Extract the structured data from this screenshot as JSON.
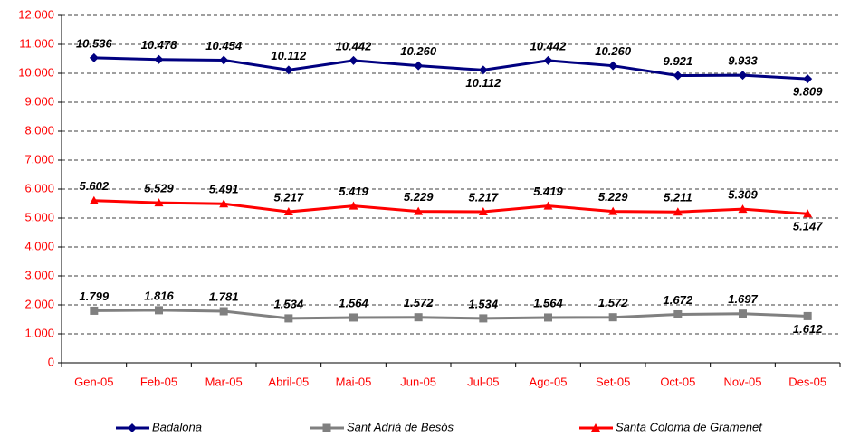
{
  "chart_data": {
    "type": "line",
    "categories": [
      "Gen-05",
      "Feb-05",
      "Mar-05",
      "Abril-05",
      "Mai-05",
      "Jun-05",
      "Jul-05",
      "Ago-05",
      "Set-05",
      "Oct-05",
      "Nov-05",
      "Des-05"
    ],
    "series": [
      {
        "name": "Badalona",
        "color": "#000080",
        "marker": "diamond",
        "values": [
          10536,
          10478,
          10454,
          10112,
          10442,
          10260,
          10112,
          10442,
          10260,
          9921,
          9933,
          9809
        ],
        "value_labels": [
          "10.536",
          "10.478",
          "10.454",
          "10.112",
          "10.442",
          "10.260",
          "10.112",
          "10.442",
          "10.260",
          "9.921",
          "9.933",
          "9.809"
        ]
      },
      {
        "name": "Sant Adrià de Besòs",
        "color": "#808080",
        "marker": "square",
        "values": [
          1799,
          1816,
          1781,
          1534,
          1564,
          1572,
          1534,
          1564,
          1572,
          1672,
          1697,
          1612
        ],
        "value_labels": [
          "1.799",
          "1.816",
          "1.781",
          "1.534",
          "1.564",
          "1.572",
          "1.534",
          "1.564",
          "1.572",
          "1.672",
          "1.697",
          "1.612"
        ]
      },
      {
        "name": "Santa Coloma de Gramenet",
        "color": "#ff0000",
        "marker": "triangle",
        "values": [
          5602,
          5529,
          5491,
          5217,
          5419,
          5229,
          5217,
          5419,
          5229,
          5211,
          5309,
          5147
        ],
        "value_labels": [
          "5.602",
          "5.529",
          "5.491",
          "5.217",
          "5.419",
          "5.229",
          "5.217",
          "5.419",
          "5.229",
          "5.211",
          "5.309",
          "5.147"
        ]
      }
    ],
    "ylim": [
      0,
      12000
    ],
    "yticks": [
      0,
      {
        "value": 1000,
        "label": "1.000"
      },
      {
        "value": 2000,
        "label": "2.000"
      },
      {
        "value": 3000,
        "label": "3.000"
      },
      {
        "value": 4000,
        "label": "4.000"
      },
      {
        "value": 5000,
        "label": "5.000"
      },
      {
        "value": 6000,
        "label": "6.000"
      },
      {
        "value": 7000,
        "label": "7.000"
      },
      {
        "value": 8000,
        "label": "8.000"
      },
      {
        "value": 9000,
        "label": "9.000"
      },
      {
        "value": 10000,
        "label": "10.000"
      },
      {
        "value": 11000,
        "label": "11.000"
      },
      {
        "value": 12000,
        "label": "12.000"
      }
    ],
    "grid": true,
    "legend": "bottom"
  }
}
